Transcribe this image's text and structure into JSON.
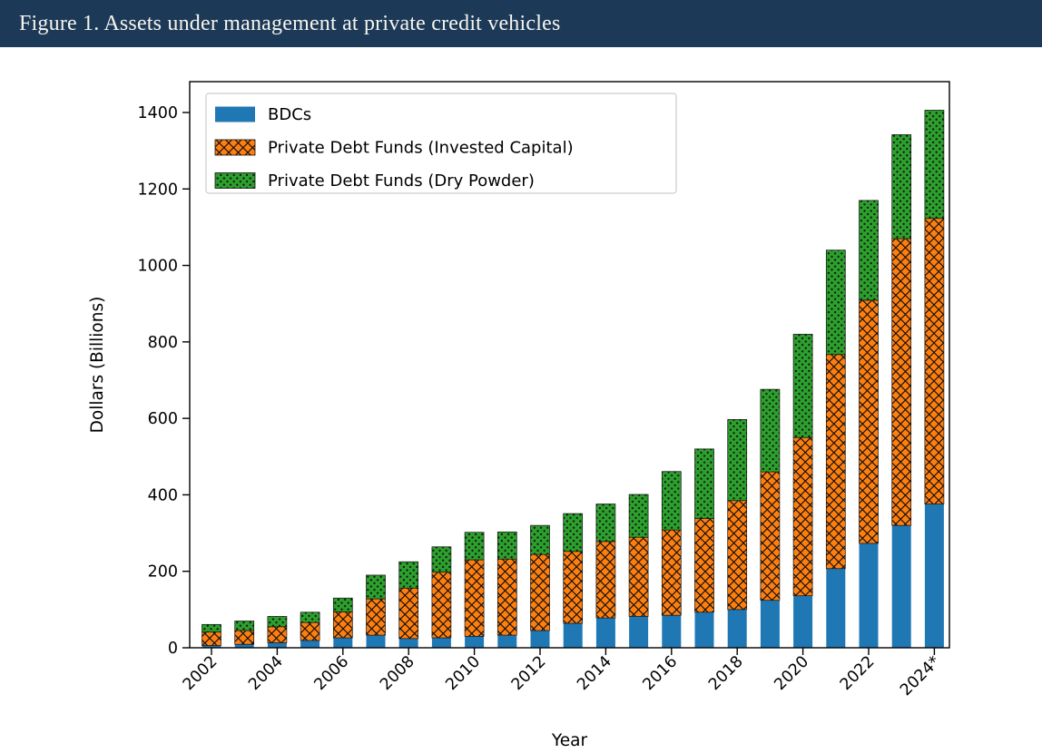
{
  "header": {
    "title": "Figure 1. Assets under management at private credit vehicles",
    "background_color": "#1c3a57",
    "text_color": "#f7f4ee"
  },
  "chart_data": {
    "type": "bar",
    "stacked": true,
    "title": "",
    "xlabel": "Year",
    "ylabel": "Dollars (Billions)",
    "ylim": [
      0,
      1480
    ],
    "yticks": [
      0,
      200,
      400,
      600,
      800,
      1000,
      1200,
      1400
    ],
    "xtick_labels": [
      "2002",
      "2004",
      "2006",
      "2008",
      "2010",
      "2012",
      "2014",
      "2016",
      "2018",
      "2020",
      "2022",
      "2024*"
    ],
    "categories": [
      "2002",
      "2003",
      "2004",
      "2005",
      "2006",
      "2007",
      "2008",
      "2009",
      "2010",
      "2011",
      "2012",
      "2013",
      "2014",
      "2015",
      "2016",
      "2017",
      "2018",
      "2019",
      "2020",
      "2021",
      "2022",
      "2023",
      "2024*"
    ],
    "series": [
      {
        "name": "BDCs",
        "color": "#1f77b4",
        "hatch": "none",
        "values": [
          6,
          9,
          13,
          19,
          26,
          33,
          24,
          26,
          30,
          33,
          45,
          64,
          78,
          82,
          85,
          93,
          100,
          124,
          136,
          207,
          273,
          320,
          376
        ]
      },
      {
        "name": "Private Debt Funds (Invested Capital)",
        "color": "#ff7f0e",
        "hatch": "cross",
        "values": [
          35,
          36,
          42,
          47,
          68,
          95,
          132,
          172,
          200,
          199,
          199,
          188,
          200,
          207,
          223,
          245,
          285,
          336,
          414,
          560,
          636,
          750,
          747
        ]
      },
      {
        "name": "Private Debt Funds (Dry Powder)",
        "color": "#2ca02c",
        "hatch": "dots",
        "values": [
          20,
          25,
          27,
          27,
          36,
          62,
          69,
          66,
          72,
          71,
          76,
          99,
          98,
          112,
          153,
          182,
          212,
          216,
          270,
          273,
          261,
          272,
          283
        ]
      }
    ],
    "legend_position": "upper left",
    "grid": false,
    "axis_color": "#000000",
    "hatch_color": "#111111",
    "plot_background": "#ffffff"
  }
}
